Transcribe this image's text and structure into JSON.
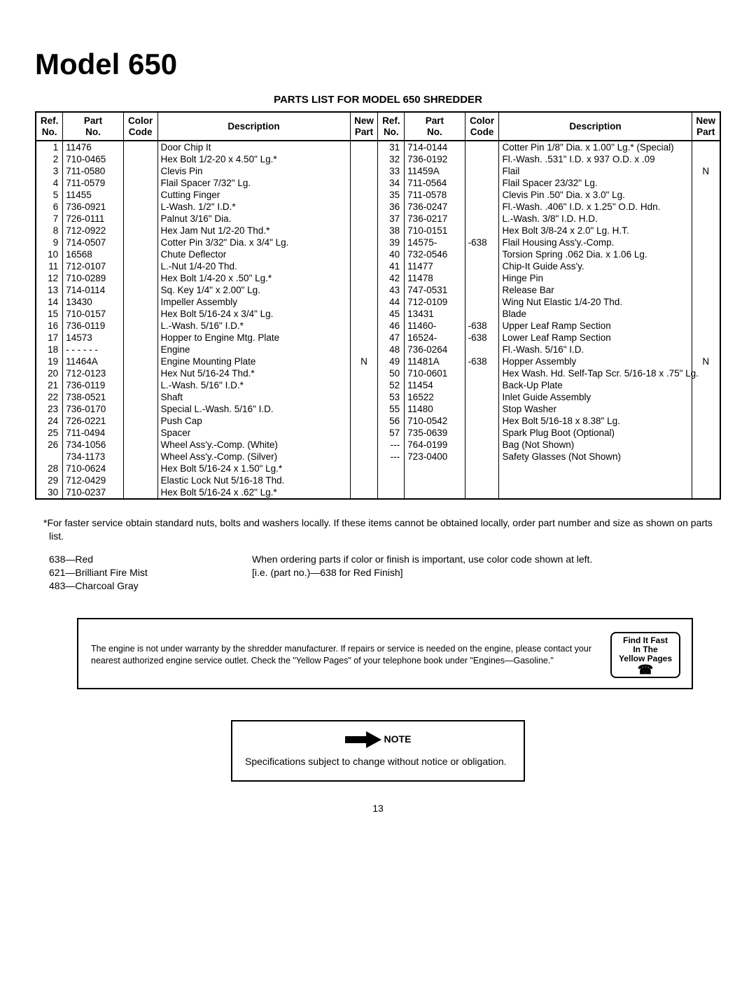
{
  "title": "Model 650",
  "subtitle": "PARTS LIST FOR MODEL 650 SHREDDER",
  "headers": {
    "ref": "Ref.\nNo.",
    "part": "Part\nNo.",
    "color": "Color\nCode",
    "desc": "Description",
    "new": "New\nPart"
  },
  "left_rows": [
    {
      "ref": "1",
      "part": "11476",
      "color": "",
      "desc": "Door Chip It",
      "new": ""
    },
    {
      "ref": "2",
      "part": "710-0465",
      "color": "",
      "desc": "Hex Bolt 1/2-20 x 4.50\" Lg.*",
      "new": ""
    },
    {
      "ref": "3",
      "part": "711-0580",
      "color": "",
      "desc": "Clevis Pin",
      "new": ""
    },
    {
      "ref": "4",
      "part": "711-0579",
      "color": "",
      "desc": "Flail Spacer 7/32\" Lg.",
      "new": ""
    },
    {
      "ref": "5",
      "part": "11455",
      "color": "",
      "desc": "Cutting Finger",
      "new": ""
    },
    {
      "ref": "6",
      "part": "736-0921",
      "color": "",
      "desc": "L-Wash. 1/2\" I.D.*",
      "new": ""
    },
    {
      "ref": "7",
      "part": "726-0111",
      "color": "",
      "desc": "Palnut 3/16\" Dia.",
      "new": ""
    },
    {
      "ref": "8",
      "part": "712-0922",
      "color": "",
      "desc": "Hex Jam Nut 1/2-20 Thd.*",
      "new": ""
    },
    {
      "ref": "9",
      "part": "714-0507",
      "color": "",
      "desc": "Cotter Pin 3/32\" Dia. x 3/4\" Lg.",
      "new": ""
    },
    {
      "ref": "10",
      "part": "16568",
      "color": "",
      "desc": "Chute Deflector",
      "new": ""
    },
    {
      "ref": "11",
      "part": "712-0107",
      "color": "",
      "desc": "L.-Nut 1/4-20 Thd.",
      "new": ""
    },
    {
      "ref": "12",
      "part": "710-0289",
      "color": "",
      "desc": "Hex Bolt 1/4-20 x .50\" Lg.*",
      "new": ""
    },
    {
      "ref": "13",
      "part": "714-0114",
      "color": "",
      "desc": "Sq. Key 1/4\" x 2.00\" Lg.",
      "new": ""
    },
    {
      "ref": "14",
      "part": "13430",
      "color": "",
      "desc": "Impeller Assembly",
      "new": ""
    },
    {
      "ref": "15",
      "part": "710-0157",
      "color": "",
      "desc": "Hex Bolt 5/16-24 x 3/4\" Lg.",
      "new": ""
    },
    {
      "ref": "16",
      "part": "736-0119",
      "color": "",
      "desc": "L.-Wash. 5/16\" I.D.*",
      "new": ""
    },
    {
      "ref": "17",
      "part": "14573",
      "color": "",
      "desc": "Hopper to Engine Mtg. Plate",
      "new": ""
    },
    {
      "ref": "18",
      "part": "- - - - - -",
      "color": "",
      "desc": "Engine",
      "new": ""
    },
    {
      "ref": "19",
      "part": "11464A",
      "color": "",
      "desc": "Engine Mounting Plate",
      "new": "N"
    },
    {
      "ref": "20",
      "part": "712-0123",
      "color": "",
      "desc": "Hex Nut 5/16-24 Thd.*",
      "new": ""
    },
    {
      "ref": "21",
      "part": "736-0119",
      "color": "",
      "desc": "L.-Wash. 5/16\" I.D.*",
      "new": ""
    },
    {
      "ref": "22",
      "part": "738-0521",
      "color": "",
      "desc": "Shaft",
      "new": ""
    },
    {
      "ref": "23",
      "part": "736-0170",
      "color": "",
      "desc": "Special L.-Wash. 5/16\" I.D.",
      "new": ""
    },
    {
      "ref": "24",
      "part": "726-0221",
      "color": "",
      "desc": "Push Cap",
      "new": ""
    },
    {
      "ref": "25",
      "part": "711-0494",
      "color": "",
      "desc": "Spacer",
      "new": ""
    },
    {
      "ref": "26",
      "part": "734-1056",
      "color": "",
      "desc": "Wheel Ass'y.-Comp. (White)",
      "new": ""
    },
    {
      "ref": "",
      "part": "734-1173",
      "color": "",
      "desc": "Wheel Ass'y.-Comp. (Silver)",
      "new": ""
    },
    {
      "ref": "28",
      "part": "710-0624",
      "color": "",
      "desc": "Hex Bolt 5/16-24 x 1.50\" Lg.*",
      "new": ""
    },
    {
      "ref": "29",
      "part": "712-0429",
      "color": "",
      "desc": "Elastic Lock Nut 5/16-18 Thd.",
      "new": ""
    },
    {
      "ref": "30",
      "part": "710-0237",
      "color": "",
      "desc": "Hex Bolt 5/16-24 x .62\" Lg.*",
      "new": ""
    }
  ],
  "right_rows": [
    {
      "ref": "31",
      "part": "714-0144",
      "color": "",
      "desc": "Cotter Pin 1/8\" Dia. x 1.00\" Lg.* (Special)",
      "new": ""
    },
    {
      "ref": "32",
      "part": "736-0192",
      "color": "",
      "desc": "Fl.-Wash. .531\" I.D. x 937 O.D. x .09",
      "new": ""
    },
    {
      "ref": "33",
      "part": "11459A",
      "color": "",
      "desc": "Flail",
      "new": "N"
    },
    {
      "ref": "34",
      "part": "711-0564",
      "color": "",
      "desc": "Flail Spacer 23/32\" Lg.",
      "new": ""
    },
    {
      "ref": "35",
      "part": "711-0578",
      "color": "",
      "desc": "Clevis Pin .50\" Dia. x 3.0\" Lg.",
      "new": ""
    },
    {
      "ref": "36",
      "part": "736-0247",
      "color": "",
      "desc": "Fl.-Wash. .406\" I.D. x 1.25\" O.D. Hdn.",
      "new": ""
    },
    {
      "ref": "37",
      "part": "736-0217",
      "color": "",
      "desc": "L.-Wash. 3/8\" I.D. H.D.",
      "new": ""
    },
    {
      "ref": "38",
      "part": "710-0151",
      "color": "",
      "desc": "Hex Bolt 3/8-24 x 2.0\" Lg. H.T.",
      "new": ""
    },
    {
      "ref": "39",
      "part": "14575-",
      "color": "-638",
      "desc": "Flail Housing Ass'y.-Comp.",
      "new": ""
    },
    {
      "ref": "40",
      "part": "732-0546",
      "color": "",
      "desc": "Torsion Spring .062 Dia. x 1.06 Lg.",
      "new": ""
    },
    {
      "ref": "41",
      "part": "11477",
      "color": "",
      "desc": "Chip-It Guide Ass'y.",
      "new": ""
    },
    {
      "ref": "42",
      "part": "11478",
      "color": "",
      "desc": "Hinge Pin",
      "new": ""
    },
    {
      "ref": "43",
      "part": "747-0531",
      "color": "",
      "desc": "Release Bar",
      "new": ""
    },
    {
      "ref": "44",
      "part": "712-0109",
      "color": "",
      "desc": "Wing Nut Elastic 1/4-20 Thd.",
      "new": ""
    },
    {
      "ref": "45",
      "part": "13431",
      "color": "",
      "desc": "Blade",
      "new": ""
    },
    {
      "ref": "46",
      "part": "11460-",
      "color": "-638",
      "desc": "Upper Leaf Ramp Section",
      "new": ""
    },
    {
      "ref": "47",
      "part": "16524-",
      "color": "-638",
      "desc": "Lower Leaf Ramp Section",
      "new": ""
    },
    {
      "ref": "48",
      "part": "736-0264",
      "color": "",
      "desc": "Fl.-Wash. 5/16\" I.D.",
      "new": ""
    },
    {
      "ref": "49",
      "part": "11481A",
      "color": "-638",
      "desc": "Hopper Assembly",
      "new": "N"
    },
    {
      "ref": "50",
      "part": "710-0601",
      "color": "",
      "desc": "Hex Wash. Hd. Self-Tap Scr. 5/16-18 x .75\" Lg.",
      "new": ""
    },
    {
      "ref": "52",
      "part": "11454",
      "color": "",
      "desc": "Back-Up Plate",
      "new": ""
    },
    {
      "ref": "53",
      "part": "16522",
      "color": "",
      "desc": "Inlet Guide Assembly",
      "new": ""
    },
    {
      "ref": "55",
      "part": "11480",
      "color": "",
      "desc": "Stop Washer",
      "new": ""
    },
    {
      "ref": "56",
      "part": "710-0542",
      "color": "",
      "desc": "Hex Bolt 5/16-18 x 8.38\" Lg.",
      "new": ""
    },
    {
      "ref": "57",
      "part": "735-0639",
      "color": "",
      "desc": "Spark Plug Boot (Optional)",
      "new": ""
    },
    {
      "ref": "---",
      "part": "764-0199",
      "color": "",
      "desc": "Bag (Not Shown)",
      "new": ""
    },
    {
      "ref": "---",
      "part": "723-0400",
      "color": "",
      "desc": "Safety Glasses (Not Shown)",
      "new": ""
    }
  ],
  "footnote": "*For faster service obtain standard nuts, bolts and washers locally. If these items cannot be obtained locally, order part number and size as shown on parts list.",
  "color_codes": [
    "638—Red",
    "621—Brilliant Fire Mist",
    "483—Charcoal Gray"
  ],
  "ordering_note_line1": "When ordering parts if color or finish is important, use color code shown at left.",
  "ordering_note_line2": "[i.e. (part no.)—638 for Red Finish]",
  "warranty_text": "The engine is not under warranty by the shredder manufacturer. If repairs or service is needed on the engine, please contact your nearest authorized engine service outlet. Check the \"Yellow Pages\" of your telephone book under \"Engines—Gasoline.\"",
  "yellow_pages": {
    "line1": "Find It Fast",
    "line2": "In The",
    "line3": "Yellow Pages"
  },
  "note_label": "NOTE",
  "note_text": "Specifications subject to change without notice or obligation.",
  "page_number": "13"
}
